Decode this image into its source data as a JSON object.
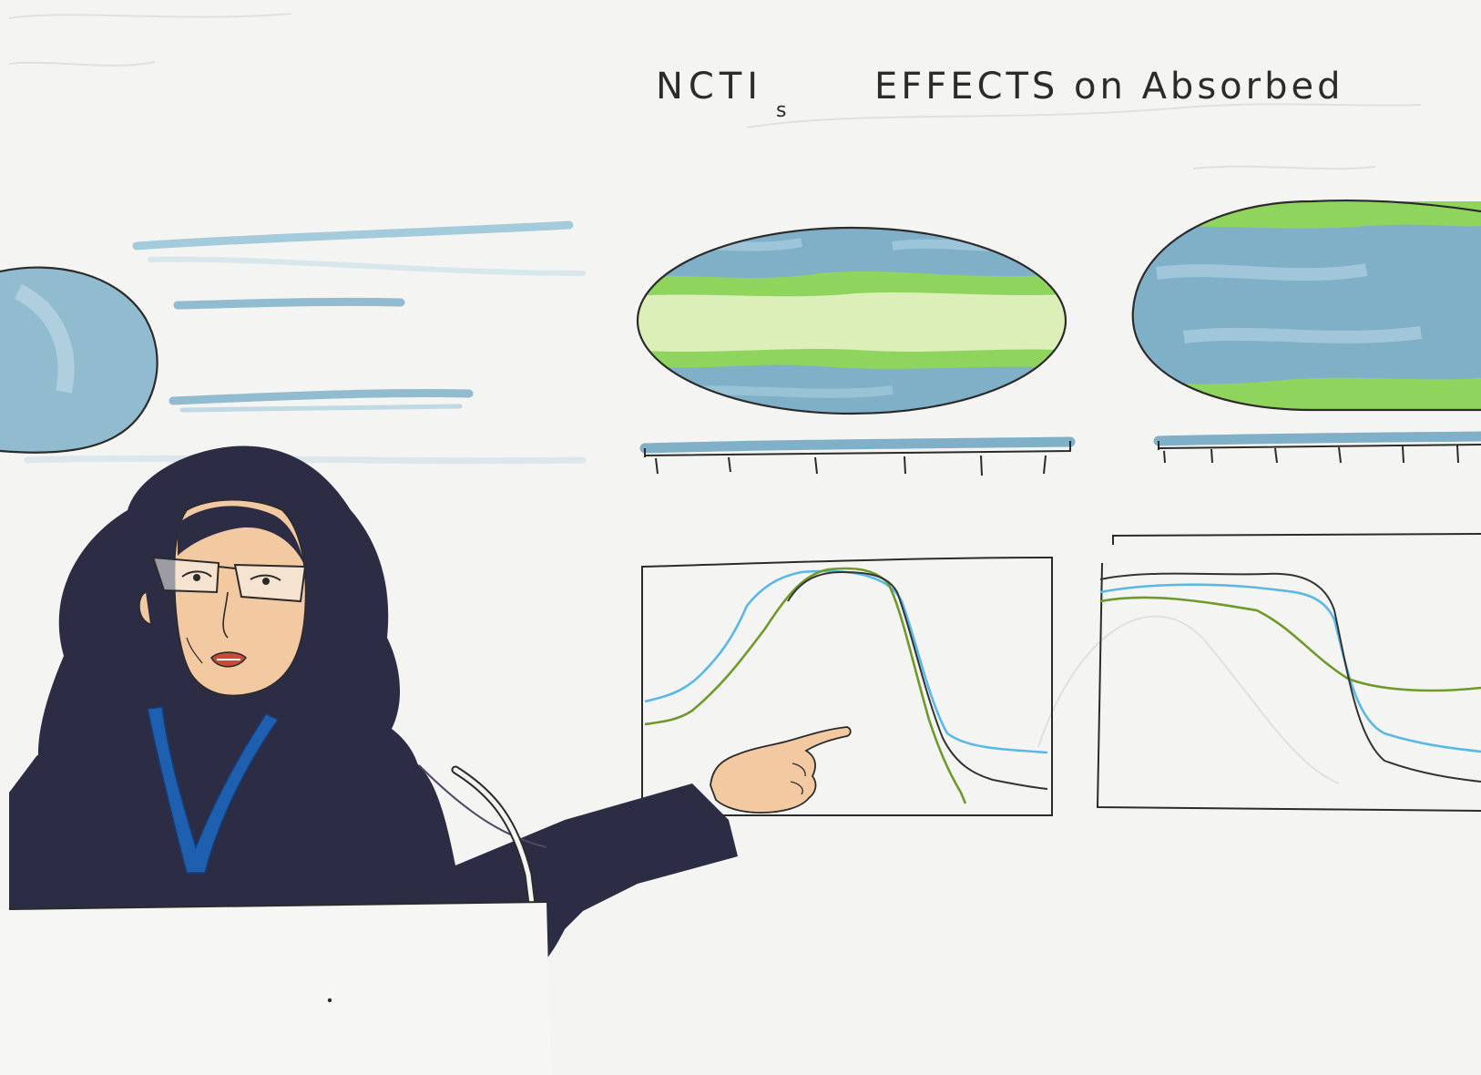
{
  "title": {
    "main": "NCTI",
    "subscript": "s",
    "rest": "EFFECTS on Absorbed"
  },
  "colors": {
    "paper": "#f4f4f2",
    "ink": "#2b2b2b",
    "wash_blue": "#7fb0c8",
    "wash_green": "#8fd45c",
    "wash_pale_green": "#dcefb8",
    "skin": "#f2c9a0",
    "hair": "#2d2c45",
    "lanyard": "#1f5fb0",
    "line_blue": "#5bb8e6",
    "line_green": "#6f9a2a",
    "line_black": "#333333"
  },
  "scene": {
    "subject": "speaker pointing at projected slide",
    "slide_left_globe": "partial-globe",
    "slide_maps": [
      "map-banded",
      "map-edged"
    ],
    "slide_plots": [
      "plot-peak",
      "plot-drop"
    ]
  }
}
